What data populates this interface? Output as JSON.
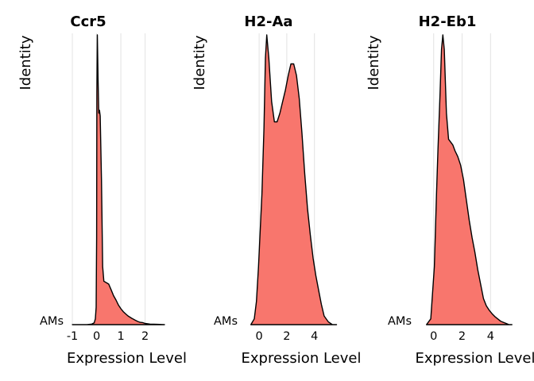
{
  "chart_data": [
    {
      "type": "area",
      "subtype": "ridgeline-density",
      "title": "Ccr5",
      "xlabel": "Expression Level",
      "ylabel": "Identity",
      "category": "AMs",
      "xlim": [
        -1.1,
        2.8
      ],
      "xticks": [
        -1,
        0,
        1,
        2
      ],
      "xtick_labels": [
        "-1",
        "0",
        "1",
        "2"
      ],
      "grid": true,
      "fill_color": "#F8766D",
      "points": [
        [
          -1.0,
          0.0
        ],
        [
          -0.4,
          0.0
        ],
        [
          -0.2,
          0.002
        ],
        [
          -0.1,
          0.006
        ],
        [
          -0.05,
          0.02
        ],
        [
          -0.02,
          0.06
        ],
        [
          0.0,
          0.3
        ],
        [
          0.01,
          0.8
        ],
        [
          0.03,
          1.0
        ],
        [
          0.06,
          0.85
        ],
        [
          0.09,
          0.73
        ],
        [
          0.12,
          0.74
        ],
        [
          0.15,
          0.72
        ],
        [
          0.2,
          0.5
        ],
        [
          0.25,
          0.2
        ],
        [
          0.3,
          0.15
        ],
        [
          0.4,
          0.145
        ],
        [
          0.5,
          0.14
        ],
        [
          0.6,
          0.12
        ],
        [
          0.7,
          0.1
        ],
        [
          0.8,
          0.085
        ],
        [
          0.9,
          0.068
        ],
        [
          1.0,
          0.055
        ],
        [
          1.1,
          0.045
        ],
        [
          1.2,
          0.037
        ],
        [
          1.3,
          0.03
        ],
        [
          1.45,
          0.022
        ],
        [
          1.6,
          0.015
        ],
        [
          1.7,
          0.011
        ],
        [
          1.8,
          0.008
        ],
        [
          1.9,
          0.007
        ],
        [
          2.0,
          0.004
        ],
        [
          2.2,
          0.002
        ],
        [
          2.5,
          0.001
        ],
        [
          2.8,
          0.0
        ]
      ]
    },
    {
      "type": "area",
      "subtype": "ridgeline-density",
      "title": "H2-Aa",
      "xlabel": "Expression Level",
      "ylabel": "Identity",
      "category": "AMs",
      "xlim": [
        -1.1,
        5.8
      ],
      "xticks": [
        0,
        2,
        4
      ],
      "xtick_labels": [
        "0",
        "2",
        "4"
      ],
      "grid": true,
      "fill_color": "#F8766D",
      "points": [
        [
          -0.6,
          0.0
        ],
        [
          -0.35,
          0.02
        ],
        [
          -0.2,
          0.08
        ],
        [
          -0.05,
          0.2
        ],
        [
          0.05,
          0.3
        ],
        [
          0.2,
          0.45
        ],
        [
          0.35,
          0.68
        ],
        [
          0.45,
          0.92
        ],
        [
          0.55,
          1.0
        ],
        [
          0.7,
          0.92
        ],
        [
          0.9,
          0.77
        ],
        [
          1.1,
          0.7
        ],
        [
          1.3,
          0.7
        ],
        [
          1.5,
          0.73
        ],
        [
          1.7,
          0.77
        ],
        [
          1.9,
          0.81
        ],
        [
          2.1,
          0.86
        ],
        [
          2.3,
          0.9
        ],
        [
          2.5,
          0.9
        ],
        [
          2.7,
          0.86
        ],
        [
          2.9,
          0.78
        ],
        [
          3.1,
          0.66
        ],
        [
          3.3,
          0.52
        ],
        [
          3.5,
          0.4
        ],
        [
          3.7,
          0.31
        ],
        [
          3.9,
          0.23
        ],
        [
          4.1,
          0.17
        ],
        [
          4.3,
          0.12
        ],
        [
          4.5,
          0.07
        ],
        [
          4.7,
          0.03
        ],
        [
          5.0,
          0.01
        ],
        [
          5.3,
          0.0
        ],
        [
          5.6,
          0.0
        ]
      ]
    },
    {
      "type": "area",
      "subtype": "ridgeline-density",
      "title": "H2-Eb1",
      "xlabel": "Expression Level",
      "ylabel": "Identity",
      "category": "AMs",
      "xlim": [
        -1.1,
        5.6
      ],
      "xticks": [
        0,
        2,
        4
      ],
      "xtick_labels": [
        "0",
        "2",
        "4"
      ],
      "grid": true,
      "fill_color": "#F8766D",
      "points": [
        [
          -0.5,
          0.0
        ],
        [
          -0.2,
          0.02
        ],
        [
          0.05,
          0.2
        ],
        [
          0.2,
          0.45
        ],
        [
          0.3,
          0.6
        ],
        [
          0.45,
          0.8
        ],
        [
          0.55,
          0.95
        ],
        [
          0.65,
          1.0
        ],
        [
          0.75,
          0.95
        ],
        [
          0.9,
          0.73
        ],
        [
          1.05,
          0.64
        ],
        [
          1.2,
          0.63
        ],
        [
          1.35,
          0.62
        ],
        [
          1.5,
          0.6
        ],
        [
          1.7,
          0.58
        ],
        [
          1.9,
          0.55
        ],
        [
          2.1,
          0.5
        ],
        [
          2.3,
          0.43
        ],
        [
          2.5,
          0.36
        ],
        [
          2.7,
          0.3
        ],
        [
          2.9,
          0.25
        ],
        [
          3.1,
          0.19
        ],
        [
          3.3,
          0.14
        ],
        [
          3.5,
          0.09
        ],
        [
          3.7,
          0.065
        ],
        [
          3.9,
          0.05
        ],
        [
          4.1,
          0.038
        ],
        [
          4.3,
          0.028
        ],
        [
          4.5,
          0.02
        ],
        [
          4.7,
          0.012
        ],
        [
          4.9,
          0.008
        ],
        [
          5.1,
          0.004
        ],
        [
          5.3,
          0.0
        ],
        [
          5.5,
          0.0
        ]
      ]
    }
  ]
}
